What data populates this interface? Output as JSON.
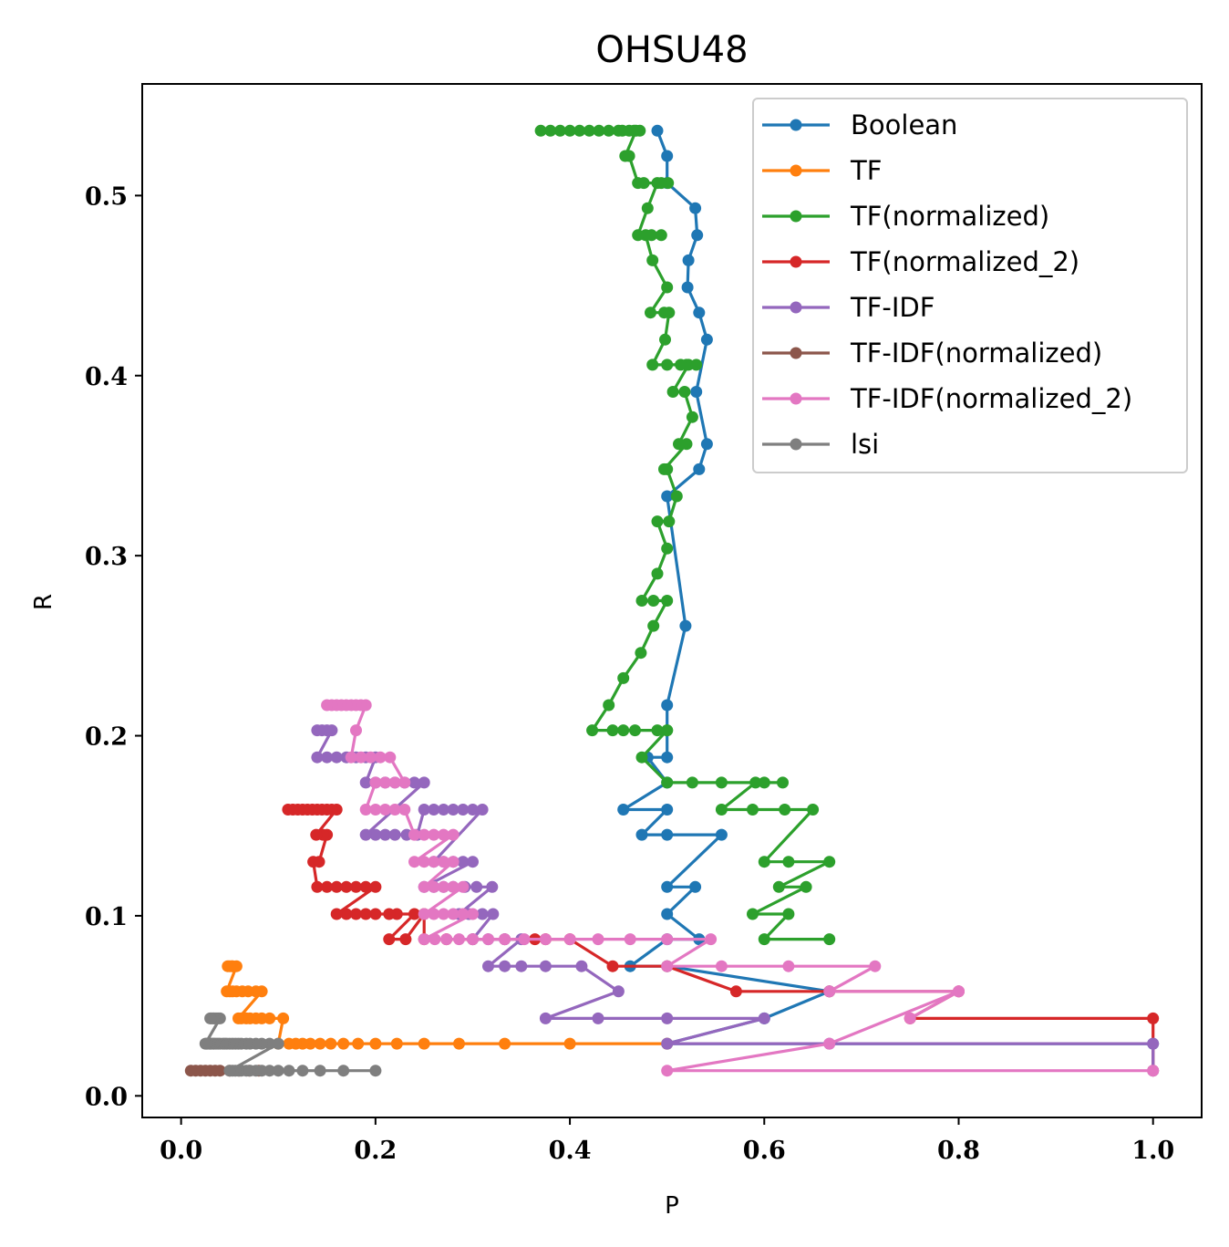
{
  "chart_data": {
    "type": "line",
    "title": "OHSU48",
    "xlabel": "P",
    "ylabel": "R",
    "xlim": [
      -0.04,
      1.05
    ],
    "ylim": [
      -0.012,
      0.562
    ],
    "xticks": [
      0.0,
      0.2,
      0.4,
      0.6,
      0.8,
      1.0
    ],
    "xtick_labels": [
      "0.0",
      "0.2",
      "0.4",
      "0.6",
      "0.8",
      "1.0"
    ],
    "yticks": [
      0.0,
      0.1,
      0.2,
      0.3,
      0.4,
      0.5
    ],
    "ytick_labels": [
      "0.0",
      "0.1",
      "0.2",
      "0.3",
      "0.4",
      "0.5"
    ],
    "grid": false,
    "legend": "upper right",
    "series": [
      {
        "name": "Boolean",
        "color": "#1f77b4",
        "x": [
          1.0,
          0.5,
          0.6,
          0.667,
          0.5,
          0.462,
          0.5,
          0.533,
          0.5,
          0.529,
          0.5,
          0.556,
          0.5,
          0.474,
          0.5,
          0.455,
          0.5,
          0.48,
          0.5,
          0.5,
          0.519,
          0.5,
          0.533,
          0.541,
          0.53,
          0.541,
          0.533,
          0.521,
          0.522,
          0.531,
          0.529,
          0.5,
          0.5,
          0.49
        ],
        "y": [
          0.029,
          0.029,
          0.043,
          0.058,
          0.072,
          0.072,
          0.087,
          0.087,
          0.101,
          0.116,
          0.116,
          0.145,
          0.145,
          0.145,
          0.159,
          0.159,
          0.174,
          0.188,
          0.188,
          0.217,
          0.261,
          0.333,
          0.348,
          0.362,
          0.391,
          0.42,
          0.435,
          0.449,
          0.464,
          0.478,
          0.493,
          0.507,
          0.522,
          0.536
        ]
      },
      {
        "name": "TF",
        "color": "#ff7f0e",
        "x": [
          0.5,
          0.4,
          0.333,
          0.286,
          0.25,
          0.222,
          0.2,
          0.182,
          0.167,
          0.154,
          0.143,
          0.133,
          0.125,
          0.118,
          0.111,
          0.1,
          0.105,
          0.091,
          0.083,
          0.077,
          0.071,
          0.067,
          0.062,
          0.059,
          0.083,
          0.077,
          0.069,
          0.063,
          0.057,
          0.053,
          0.05,
          0.047,
          0.057,
          0.053,
          0.048,
          0.052,
          0.05
        ],
        "y": [
          0.029,
          0.029,
          0.029,
          0.029,
          0.029,
          0.029,
          0.029,
          0.029,
          0.029,
          0.029,
          0.029,
          0.029,
          0.029,
          0.029,
          0.029,
          0.029,
          0.043,
          0.043,
          0.043,
          0.043,
          0.043,
          0.043,
          0.043,
          0.043,
          0.058,
          0.058,
          0.058,
          0.058,
          0.058,
          0.058,
          0.058,
          0.058,
          0.072,
          0.072,
          0.072,
          0.072,
          0.072
        ]
      },
      {
        "name": "TF(normalized)",
        "color": "#2ca02c",
        "x": [
          0.667,
          0.6,
          0.625,
          0.588,
          0.643,
          0.615,
          0.667,
          0.625,
          0.6,
          0.65,
          0.621,
          0.588,
          0.556,
          0.591,
          0.619,
          0.6,
          0.556,
          0.526,
          0.5,
          0.474,
          0.5,
          0.49,
          0.5,
          0.467,
          0.455,
          0.444,
          0.423,
          0.44,
          0.455,
          0.473,
          0.486,
          0.5,
          0.486,
          0.474,
          0.49,
          0.5,
          0.49,
          0.502,
          0.51,
          0.5,
          0.497,
          0.52,
          0.512,
          0.526,
          0.518,
          0.506,
          0.522,
          0.53,
          0.52,
          0.514,
          0.5,
          0.485,
          0.498,
          0.502,
          0.497,
          0.483,
          0.5,
          0.485,
          0.478,
          0.484,
          0.494,
          0.47,
          0.48,
          0.49,
          0.501,
          0.494,
          0.476,
          0.47,
          0.461,
          0.457,
          0.468,
          0.472,
          0.466,
          0.461,
          0.454,
          0.45,
          0.44,
          0.43,
          0.42,
          0.41,
          0.4,
          0.39,
          0.38,
          0.37
        ],
        "y": [
          0.087,
          0.087,
          0.101,
          0.101,
          0.116,
          0.116,
          0.13,
          0.13,
          0.13,
          0.159,
          0.159,
          0.159,
          0.159,
          0.174,
          0.174,
          0.174,
          0.174,
          0.174,
          0.174,
          0.188,
          0.203,
          0.203,
          0.203,
          0.203,
          0.203,
          0.203,
          0.203,
          0.217,
          0.232,
          0.246,
          0.261,
          0.275,
          0.275,
          0.275,
          0.29,
          0.304,
          0.319,
          0.319,
          0.333,
          0.348,
          0.348,
          0.362,
          0.362,
          0.377,
          0.391,
          0.391,
          0.406,
          0.406,
          0.406,
          0.406,
          0.406,
          0.406,
          0.42,
          0.435,
          0.435,
          0.435,
          0.449,
          0.464,
          0.478,
          0.478,
          0.478,
          0.478,
          0.493,
          0.507,
          0.507,
          0.507,
          0.507,
          0.507,
          0.522,
          0.522,
          0.536,
          0.536,
          0.536,
          0.536,
          0.536,
          0.536,
          0.536,
          0.536,
          0.536,
          0.536,
          0.536,
          0.536,
          0.536,
          0.536
        ]
      },
      {
        "name": "TF(normalized_2)",
        "color": "#d62728",
        "x": [
          1.0,
          1.0,
          0.75,
          0.8,
          0.667,
          0.571,
          0.5,
          0.444,
          0.4,
          0.375,
          0.364,
          0.333,
          0.3,
          0.273,
          0.25,
          0.25,
          0.231,
          0.214,
          0.24,
          0.222,
          0.214,
          0.2,
          0.19,
          0.18,
          0.17,
          0.16,
          0.2,
          0.19,
          0.18,
          0.17,
          0.16,
          0.15,
          0.14,
          0.136,
          0.142,
          0.15,
          0.146,
          0.139,
          0.16,
          0.155,
          0.15,
          0.145,
          0.14,
          0.135,
          0.13,
          0.125,
          0.12,
          0.115,
          0.11
        ],
        "y": [
          0.014,
          0.043,
          0.043,
          0.058,
          0.058,
          0.058,
          0.072,
          0.072,
          0.087,
          0.087,
          0.087,
          0.087,
          0.087,
          0.087,
          0.087,
          0.101,
          0.087,
          0.087,
          0.101,
          0.101,
          0.101,
          0.101,
          0.101,
          0.101,
          0.101,
          0.101,
          0.116,
          0.116,
          0.116,
          0.116,
          0.116,
          0.116,
          0.116,
          0.13,
          0.13,
          0.145,
          0.145,
          0.145,
          0.159,
          0.159,
          0.159,
          0.159,
          0.159,
          0.159,
          0.159,
          0.159,
          0.159,
          0.159,
          0.159
        ]
      },
      {
        "name": "TF-IDF",
        "color": "#9467bd",
        "x": [
          1.0,
          1.0,
          0.667,
          0.5,
          0.6,
          0.5,
          0.429,
          0.375,
          0.45,
          0.412,
          0.375,
          0.35,
          0.333,
          0.316,
          0.35,
          0.333,
          0.316,
          0.3,
          0.321,
          0.31,
          0.296,
          0.286,
          0.32,
          0.304,
          0.292,
          0.28,
          0.27,
          0.26,
          0.25,
          0.3,
          0.29,
          0.28,
          0.27,
          0.26,
          0.31,
          0.3,
          0.29,
          0.28,
          0.27,
          0.26,
          0.25,
          0.243,
          0.232,
          0.22,
          0.21,
          0.2,
          0.19,
          0.25,
          0.24,
          0.23,
          0.22,
          0.21,
          0.2,
          0.19,
          0.2,
          0.19,
          0.18,
          0.17,
          0.16,
          0.15,
          0.14,
          0.155,
          0.15,
          0.145,
          0.14
        ],
        "y": [
          0.014,
          0.029,
          0.029,
          0.029,
          0.043,
          0.043,
          0.043,
          0.043,
          0.058,
          0.072,
          0.072,
          0.072,
          0.072,
          0.072,
          0.087,
          0.087,
          0.087,
          0.087,
          0.101,
          0.101,
          0.101,
          0.101,
          0.116,
          0.116,
          0.116,
          0.116,
          0.116,
          0.116,
          0.116,
          0.13,
          0.13,
          0.13,
          0.13,
          0.13,
          0.159,
          0.159,
          0.159,
          0.159,
          0.159,
          0.159,
          0.159,
          0.145,
          0.145,
          0.145,
          0.145,
          0.145,
          0.145,
          0.174,
          0.174,
          0.174,
          0.174,
          0.174,
          0.174,
          0.174,
          0.188,
          0.188,
          0.188,
          0.188,
          0.188,
          0.188,
          0.188,
          0.203,
          0.203,
          0.203,
          0.203
        ]
      },
      {
        "name": "TF-IDF(normalized)",
        "color": "#8c564b",
        "x": [
          0.08,
          0.07,
          0.06,
          0.05,
          0.04,
          0.035,
          0.03,
          0.025,
          0.02,
          0.015,
          0.01
        ],
        "y": [
          0.014,
          0.014,
          0.014,
          0.014,
          0.014,
          0.014,
          0.014,
          0.014,
          0.014,
          0.014,
          0.014
        ]
      },
      {
        "name": "TF-IDF(normalized_2)",
        "color": "#e377c2",
        "x": [
          1.0,
          0.5,
          0.667,
          0.8,
          0.75,
          0.8,
          0.667,
          0.714,
          0.625,
          0.556,
          0.5,
          0.545,
          0.5,
          0.462,
          0.429,
          0.4,
          0.375,
          0.353,
          0.333,
          0.316,
          0.3,
          0.286,
          0.273,
          0.261,
          0.25,
          0.3,
          0.29,
          0.28,
          0.27,
          0.26,
          0.25,
          0.29,
          0.28,
          0.27,
          0.26,
          0.25,
          0.28,
          0.27,
          0.26,
          0.25,
          0.24,
          0.28,
          0.27,
          0.26,
          0.25,
          0.24,
          0.23,
          0.22,
          0.21,
          0.2,
          0.19,
          0.2,
          0.21,
          0.22,
          0.23,
          0.215,
          0.205,
          0.195,
          0.185,
          0.175,
          0.18,
          0.19,
          0.185,
          0.18,
          0.175,
          0.17,
          0.165,
          0.16,
          0.155,
          0.15
        ],
        "y": [
          0.014,
          0.014,
          0.029,
          0.058,
          0.043,
          0.058,
          0.058,
          0.072,
          0.072,
          0.072,
          0.072,
          0.087,
          0.087,
          0.087,
          0.087,
          0.087,
          0.087,
          0.087,
          0.087,
          0.087,
          0.087,
          0.087,
          0.087,
          0.087,
          0.087,
          0.101,
          0.101,
          0.101,
          0.101,
          0.101,
          0.101,
          0.116,
          0.116,
          0.116,
          0.116,
          0.116,
          0.13,
          0.13,
          0.13,
          0.13,
          0.13,
          0.145,
          0.145,
          0.145,
          0.145,
          0.145,
          0.159,
          0.159,
          0.159,
          0.159,
          0.159,
          0.174,
          0.174,
          0.174,
          0.174,
          0.188,
          0.188,
          0.188,
          0.188,
          0.188,
          0.203,
          0.217,
          0.217,
          0.217,
          0.217,
          0.217,
          0.217,
          0.217,
          0.217,
          0.217
        ]
      },
      {
        "name": "lsi",
        "color": "#7f7f7f",
        "x": [
          0.2,
          0.167,
          0.143,
          0.125,
          0.111,
          0.1,
          0.091,
          0.083,
          0.077,
          0.071,
          0.067,
          0.062,
          0.059,
          0.056,
          0.053,
          0.05,
          0.1,
          0.091,
          0.083,
          0.077,
          0.071,
          0.067,
          0.062,
          0.059,
          0.056,
          0.053,
          0.05,
          0.047,
          0.045,
          0.043,
          0.04,
          0.038,
          0.036,
          0.034,
          0.033,
          0.031,
          0.03,
          0.029,
          0.027,
          0.026,
          0.025,
          0.04,
          0.038,
          0.036,
          0.034,
          0.033,
          0.031,
          0.03
        ],
        "y": [
          0.014,
          0.014,
          0.014,
          0.014,
          0.014,
          0.014,
          0.014,
          0.014,
          0.014,
          0.014,
          0.014,
          0.014,
          0.014,
          0.014,
          0.014,
          0.014,
          0.029,
          0.029,
          0.029,
          0.029,
          0.029,
          0.029,
          0.029,
          0.029,
          0.029,
          0.029,
          0.029,
          0.029,
          0.029,
          0.029,
          0.029,
          0.029,
          0.029,
          0.029,
          0.029,
          0.029,
          0.029,
          0.029,
          0.029,
          0.029,
          0.029,
          0.043,
          0.043,
          0.043,
          0.043,
          0.043,
          0.043,
          0.043
        ]
      }
    ]
  }
}
